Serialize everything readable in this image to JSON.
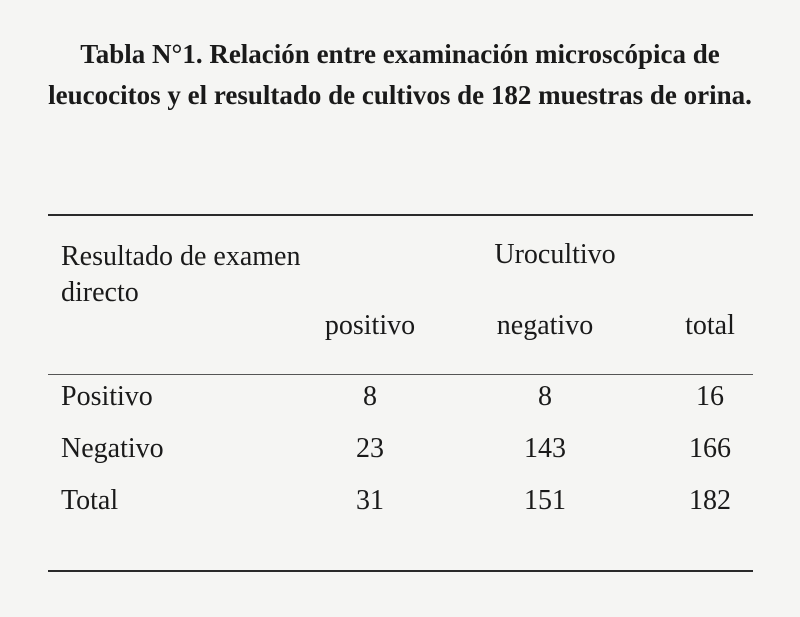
{
  "table": {
    "title": "Tabla N°1. Relación entre examinación microscópica de leucocitos y el resultado de cultivos de 182 muestras de orina.",
    "row_header": "Resultado de examen directo",
    "group_header": "Urocultivo",
    "columns": [
      "positivo",
      "negativo",
      "total"
    ],
    "rows": [
      {
        "label": "Positivo",
        "values": [
          "8",
          "8",
          "16"
        ]
      },
      {
        "label": "Negativo",
        "values": [
          "23",
          "143",
          "166"
        ]
      },
      {
        "label": "Total",
        "values": [
          "31",
          "151",
          "182"
        ]
      }
    ]
  }
}
